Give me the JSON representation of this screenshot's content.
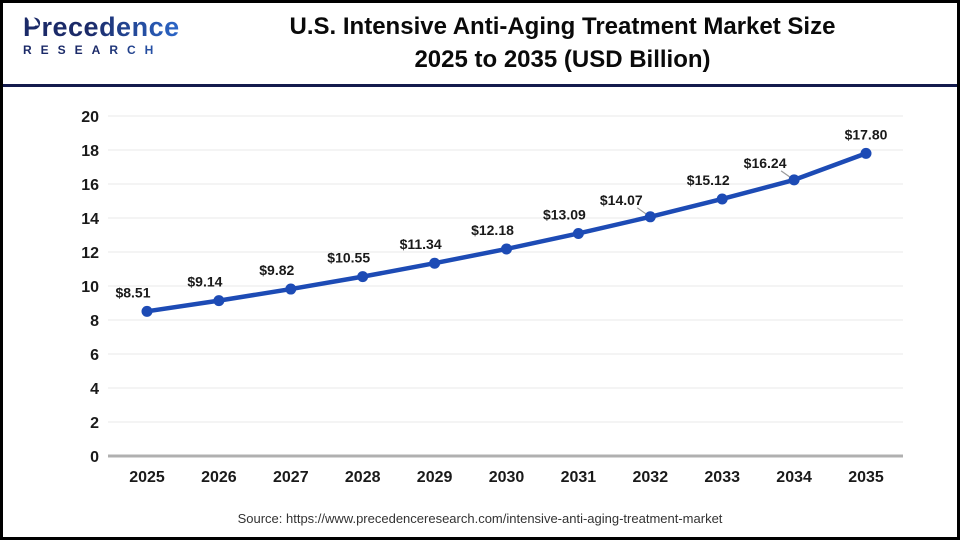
{
  "header": {
    "logo": {
      "brand": "Precedence",
      "sub": "RESEARCH"
    },
    "title_line1": "U.S. Intensive Anti-Aging Treatment Market Size",
    "title_line2": "2025 to 2035 (USD Billion)"
  },
  "chart_data": {
    "type": "line",
    "title": "U.S. Intensive Anti-Aging Treatment Market Size 2025 to 2035 (USD Billion)",
    "categories": [
      "2025",
      "2026",
      "2027",
      "2028",
      "2029",
      "2030",
      "2031",
      "2032",
      "2033",
      "2034",
      "2035"
    ],
    "values": [
      8.51,
      9.14,
      9.82,
      10.55,
      11.34,
      12.18,
      13.09,
      14.07,
      15.12,
      16.24,
      17.8
    ],
    "point_labels": [
      "$8.51",
      "$9.14",
      "$9.82",
      "$10.55",
      "$11.34",
      "$12.18",
      "$13.09",
      "$14.07",
      "$15.12",
      "$16.24",
      "$17.80"
    ],
    "xlabel": "",
    "ylabel": "",
    "ylim": [
      0,
      20
    ],
    "ytick_step": 2,
    "yticks": [
      0,
      2,
      4,
      6,
      8,
      10,
      12,
      14,
      16,
      18,
      20
    ],
    "grid": true,
    "legend": "none",
    "line_color": "#1d4bb5",
    "grid_color": "#ededed",
    "baseline_color": "#b0b0b0",
    "label_color": "#1a1a1a",
    "leader_color": "#9a9a9a",
    "label_leader_indices": [
      7,
      9
    ]
  },
  "footer": {
    "source": "Source: https://www.precedenceresearch.com/intensive-anti-aging-treatment-market"
  }
}
